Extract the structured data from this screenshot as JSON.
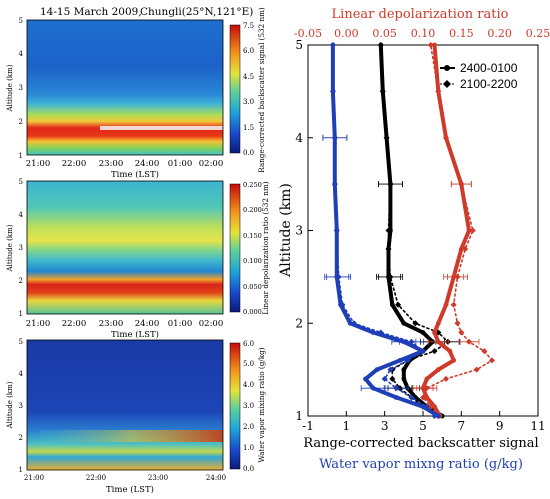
{
  "figure": {
    "header": "14-15 March 2009,",
    "header_location": "Chungli(25°N,121°E)"
  },
  "colors": {
    "black": "#000000",
    "red": "#d03a2a",
    "blue": "#1f3fb8",
    "top_axis": "#d03a2a",
    "bottom_label_blue": "#1f3fb8"
  },
  "chart_data": [
    {
      "type": "heatmap",
      "panel": "top-left",
      "ylabel": "Altitude (km)",
      "xlabel": "Time (LST)",
      "x_ticks": [
        "21:00",
        "22:00",
        "23:00",
        "24:00",
        "01:00",
        "02:00"
      ],
      "y_ticks": [
        "1",
        "2",
        "3",
        "4",
        "5"
      ],
      "ylim": [
        1,
        5
      ],
      "colorbar_label": "Range-corrected backscatter signal (532 nm)",
      "colorbar_ticks": [
        "0.0",
        "1.5",
        "3.0",
        "4.5",
        "6.0",
        "7.5"
      ],
      "colorbar_range": [
        0,
        7.5
      ]
    },
    {
      "type": "heatmap",
      "panel": "middle-left",
      "ylabel": "Altitude (km)",
      "xlabel": "Time (LST)",
      "x_ticks": [
        "21:00",
        "22:00",
        "23:00",
        "24:00",
        "01:00",
        "02:00"
      ],
      "y_ticks": [
        "1",
        "2",
        "3",
        "4",
        "5"
      ],
      "ylim": [
        1,
        5
      ],
      "colorbar_label": "Linear depolarization ratio (532 nm)",
      "colorbar_ticks": [
        "0.000",
        "0.050",
        "0.100",
        "0.150",
        "0.200",
        "0.250"
      ],
      "colorbar_range": [
        0,
        0.25
      ]
    },
    {
      "type": "heatmap",
      "panel": "bottom-left",
      "ylabel": "Altitude (km)",
      "xlabel": "Time (LST)",
      "x_ticks": [
        "21:00",
        "22:00",
        "23:00",
        "24:00"
      ],
      "y_ticks": [
        "1",
        "2",
        "3",
        "4",
        "5"
      ],
      "ylim": [
        1,
        5
      ],
      "colorbar_label": "Water vapor mixing ratio (g/kg)",
      "colorbar_ticks": [
        "0.0",
        "1.0",
        "2.0",
        "3.0",
        "4.0",
        "5.0",
        "6.0"
      ],
      "colorbar_range": [
        0,
        6
      ]
    },
    {
      "type": "line",
      "panel": "right",
      "top_axis_label": "Linear depolarization ratio",
      "top_ticks": [
        "-0.05",
        "0.00",
        "0.05",
        "0.10",
        "0.15",
        "0.20",
        "0.25"
      ],
      "top_xlim": [
        -0.05,
        0.25
      ],
      "bottom_axis_label": "Range-corrected backscatter signal",
      "bottom_axis_label2": "Water vapor mixng ratio (g/kg)",
      "bottom_ticks": [
        "-1",
        "1",
        "3",
        "5",
        "7",
        "9",
        "11"
      ],
      "xlim": [
        -1,
        11
      ],
      "ylabel": "Altitude (km)",
      "y_ticks": [
        "1",
        "2",
        "3",
        "4",
        "5"
      ],
      "ylim": [
        1,
        5
      ],
      "legend": [
        "2400-0100",
        "2100-2200"
      ],
      "legend_position": "top-right",
      "series": [
        {
          "name": "2400-0100",
          "variable": "backscatter",
          "color": "#000000",
          "style": "solid",
          "y": [
            1.0,
            1.1,
            1.2,
            1.3,
            1.4,
            1.5,
            1.6,
            1.7,
            1.8,
            1.9,
            2.0,
            2.2,
            2.5,
            2.8,
            3.0,
            3.5,
            4.0,
            4.5,
            5.0
          ],
          "x": [
            6.0,
            5.2,
            4.6,
            4.2,
            4.0,
            4.0,
            4.3,
            5.0,
            5.5,
            5.0,
            4.0,
            3.4,
            3.2,
            3.2,
            3.3,
            3.3,
            3.1,
            2.9,
            2.8
          ]
        },
        {
          "name": "2100-2200",
          "variable": "backscatter",
          "color": "#000000",
          "style": "dotted",
          "y": [
            1.0,
            1.1,
            1.2,
            1.3,
            1.4,
            1.5,
            1.6,
            1.7,
            1.8,
            1.9,
            2.0,
            2.2,
            2.5,
            2.8,
            3.0,
            3.5,
            4.0,
            4.5,
            5.0
          ],
          "x": [
            5.8,
            5.0,
            4.4,
            3.8,
            3.4,
            3.4,
            4.2,
            5.6,
            6.3,
            5.8,
            4.6,
            3.7,
            3.3,
            3.2,
            3.2,
            3.3,
            3.1,
            2.9,
            2.8
          ]
        },
        {
          "name": "2400-0100",
          "variable": "depolarization",
          "color": "#d03a2a",
          "style": "solid",
          "y": [
            1.0,
            1.1,
            1.2,
            1.3,
            1.4,
            1.5,
            1.6,
            1.7,
            1.8,
            1.9,
            2.0,
            2.2,
            2.5,
            2.8,
            3.0,
            3.5,
            4.0,
            4.5,
            5.0
          ],
          "x": [
            0.122,
            0.115,
            0.105,
            0.1,
            0.105,
            0.12,
            0.14,
            0.135,
            0.12,
            0.115,
            0.12,
            0.13,
            0.14,
            0.15,
            0.16,
            0.15,
            0.13,
            0.12,
            0.115
          ]
        },
        {
          "name": "2100-2200",
          "variable": "depolarization",
          "color": "#d03a2a",
          "style": "dotted",
          "y": [
            1.0,
            1.1,
            1.2,
            1.3,
            1.4,
            1.5,
            1.6,
            1.7,
            1.8,
            1.9,
            2.0,
            2.2,
            2.5,
            2.8,
            3.0,
            3.5,
            4.0,
            4.5,
            5.0
          ],
          "x": [
            0.12,
            0.11,
            0.1,
            0.105,
            0.13,
            0.17,
            0.19,
            0.18,
            0.16,
            0.15,
            0.145,
            0.14,
            0.145,
            0.155,
            0.165,
            0.15,
            0.13,
            0.12,
            0.11
          ]
        },
        {
          "name": "2400-0100",
          "variable": "water_vapor",
          "color": "#1f3fb8",
          "style": "solid",
          "y": [
            1.0,
            1.1,
            1.2,
            1.3,
            1.4,
            1.5,
            1.6,
            1.7,
            1.8,
            1.9,
            2.0,
            2.2,
            2.5,
            3.0,
            3.5,
            4.0,
            4.5,
            5.0
          ],
          "x": [
            5.8,
            5.0,
            3.6,
            2.4,
            2.0,
            2.6,
            3.8,
            5.0,
            4.0,
            2.4,
            1.2,
            0.7,
            0.5,
            0.5,
            0.4,
            0.4,
            0.3,
            0.3
          ]
        },
        {
          "name": "2100-2200",
          "variable": "water_vapor",
          "color": "#1f3fb8",
          "style": "dotted",
          "y": [
            1.0,
            1.1,
            1.2,
            1.3,
            1.4,
            1.5,
            1.6,
            1.7,
            1.8,
            1.9,
            2.0,
            2.2,
            2.5,
            3.0,
            3.5,
            4.0,
            4.5,
            5.0
          ],
          "x": [
            5.6,
            5.2,
            4.4,
            3.6,
            3.0,
            3.3,
            4.2,
            5.0,
            4.4,
            2.8,
            1.4,
            0.8,
            0.6,
            0.5,
            0.4,
            0.4,
            0.3,
            0.3
          ]
        }
      ]
    }
  ]
}
